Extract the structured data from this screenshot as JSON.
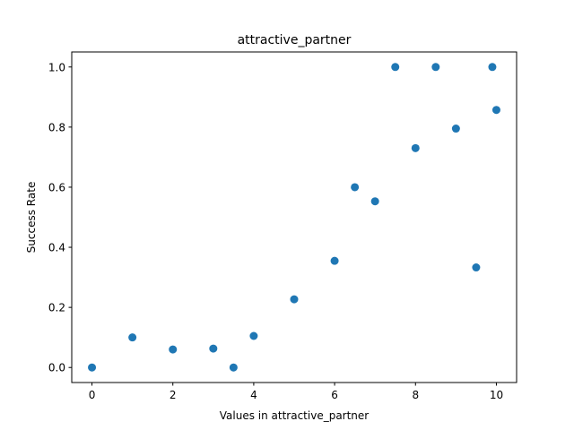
{
  "chart_data": {
    "type": "scatter",
    "title": "attractive_partner",
    "xlabel": "Values in attractive_partner",
    "ylabel": "Success Rate",
    "xlim": [
      -0.5,
      10.5
    ],
    "ylim": [
      -0.05,
      1.05
    ],
    "x_ticks": [
      0,
      2,
      4,
      6,
      8,
      10
    ],
    "x_tick_labels": [
      "0",
      "2",
      "4",
      "6",
      "8",
      "10"
    ],
    "y_ticks": [
      0.0,
      0.2,
      0.4,
      0.6,
      0.8,
      1.0
    ],
    "y_tick_labels": [
      "0.0",
      "0.2",
      "0.4",
      "0.6",
      "0.8",
      "1.0"
    ],
    "grid": false,
    "color": "#1f77b4",
    "points": [
      {
        "x": 0,
        "y": 0.0
      },
      {
        "x": 1,
        "y": 0.1
      },
      {
        "x": 2,
        "y": 0.06
      },
      {
        "x": 3,
        "y": 0.063
      },
      {
        "x": 3.5,
        "y": 0.0
      },
      {
        "x": 4,
        "y": 0.105
      },
      {
        "x": 5,
        "y": 0.227
      },
      {
        "x": 6,
        "y": 0.355
      },
      {
        "x": 6.5,
        "y": 0.6
      },
      {
        "x": 7,
        "y": 0.553
      },
      {
        "x": 7.5,
        "y": 1.0
      },
      {
        "x": 8,
        "y": 0.73
      },
      {
        "x": 8.5,
        "y": 1.0
      },
      {
        "x": 9,
        "y": 0.795
      },
      {
        "x": 9.5,
        "y": 0.333
      },
      {
        "x": 9.9,
        "y": 1.0
      },
      {
        "x": 10,
        "y": 0.857
      }
    ]
  }
}
